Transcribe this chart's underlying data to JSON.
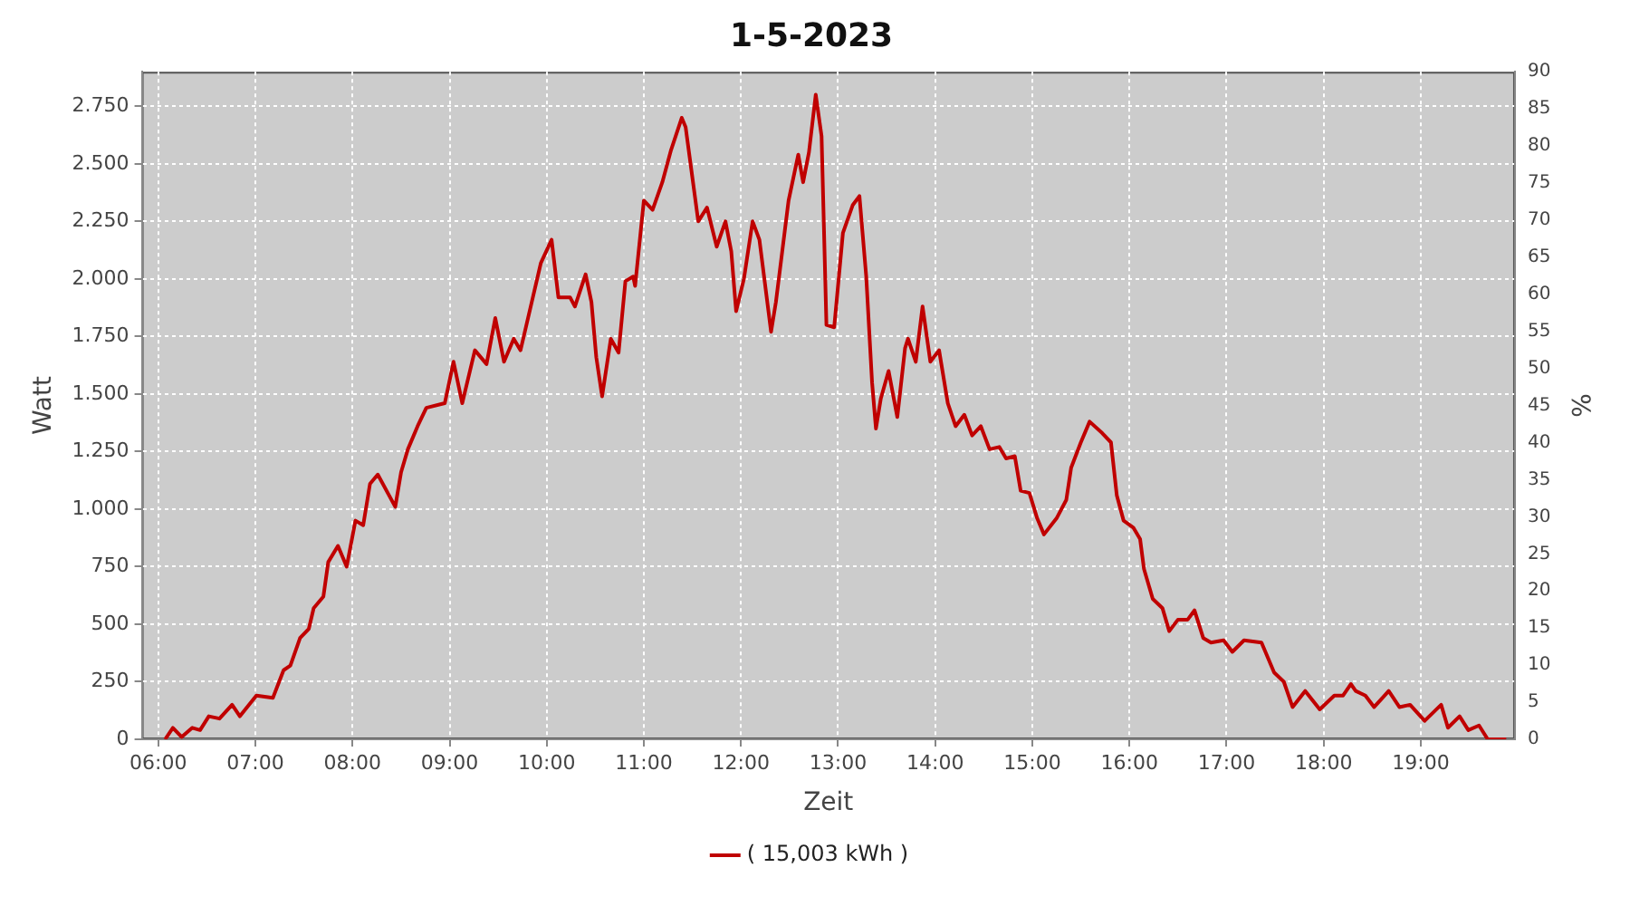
{
  "chart_data": {
    "type": "line",
    "title": "1-5-2023",
    "xlabel": "Zeit",
    "ylabel": "Watt",
    "y2label": "%",
    "xlim": [
      5.83,
      19.97
    ],
    "xticks": [
      {
        "value": 6,
        "label": "06:00"
      },
      {
        "value": 7,
        "label": "07:00"
      },
      {
        "value": 8,
        "label": "08:00"
      },
      {
        "value": 9,
        "label": "09:00"
      },
      {
        "value": 10,
        "label": "10:00"
      },
      {
        "value": 11,
        "label": "11:00"
      },
      {
        "value": 12,
        "label": "12:00"
      },
      {
        "value": 13,
        "label": "13:00"
      },
      {
        "value": 14,
        "label": "14:00"
      },
      {
        "value": 15,
        "label": "15:00"
      },
      {
        "value": 16,
        "label": "16:00"
      },
      {
        "value": 17,
        "label": "17:00"
      },
      {
        "value": 18,
        "label": "18:00"
      },
      {
        "value": 19,
        "label": "19:00"
      }
    ],
    "ylim": [
      0,
      2900
    ],
    "yticks": [
      0,
      250,
      500,
      750,
      {
        "value": 1000,
        "label": "1.000"
      },
      {
        "value": 1250,
        "label": "1.250"
      },
      {
        "value": 1500,
        "label": "1.500"
      },
      {
        "value": 1750,
        "label": "1.750"
      },
      {
        "value": 2000,
        "label": "2.000"
      },
      {
        "value": 2250,
        "label": "2.250"
      },
      {
        "value": 2500,
        "label": "2.500"
      },
      {
        "value": 2750,
        "label": "2.750"
      }
    ],
    "y2lim": [
      0,
      90
    ],
    "y2ticks": [
      0,
      5,
      10,
      15,
      20,
      25,
      30,
      35,
      40,
      45,
      50,
      55,
      60,
      65,
      70,
      75,
      80,
      85,
      90
    ],
    "grid": true,
    "legend": "bottom",
    "series": [
      {
        "name": "( 15,003 kWh )",
        "color": "#c00000",
        "x": [
          6.07,
          6.15,
          6.24,
          6.35,
          6.43,
          6.52,
          6.63,
          6.76,
          6.84,
          7.01,
          7.18,
          7.29,
          7.36,
          7.46,
          7.55,
          7.6,
          7.7,
          7.75,
          7.85,
          7.94,
          8.03,
          8.11,
          8.18,
          8.26,
          8.44,
          8.5,
          8.57,
          8.67,
          8.76,
          8.95,
          9.04,
          9.13,
          9.26,
          9.38,
          9.47,
          9.56,
          9.66,
          9.73,
          9.94,
          10.05,
          10.12,
          10.24,
          10.29,
          10.4,
          10.46,
          10.51,
          10.57,
          10.66,
          10.74,
          10.81,
          10.89,
          10.91,
          11.0,
          11.09,
          11.19,
          11.28,
          11.39,
          11.43,
          11.56,
          11.65,
          11.75,
          11.84,
          11.9,
          11.95,
          12.03,
          12.12,
          12.19,
          12.31,
          12.36,
          12.49,
          12.59,
          12.64,
          12.7,
          12.77,
          12.83,
          12.88,
          12.96,
          13.05,
          13.15,
          13.22,
          13.29,
          13.35,
          13.39,
          13.44,
          13.52,
          13.61,
          13.69,
          13.72,
          13.8,
          13.87,
          13.95,
          14.04,
          14.13,
          14.21,
          14.3,
          14.38,
          14.47,
          14.56,
          14.66,
          14.73,
          14.82,
          14.88,
          14.97,
          15.05,
          15.12,
          15.25,
          15.35,
          15.4,
          15.5,
          15.59,
          15.72,
          15.81,
          15.87,
          15.94,
          16.04,
          16.11,
          16.15,
          16.24,
          16.34,
          16.41,
          16.5,
          16.6,
          16.67,
          16.76,
          16.84,
          16.97,
          17.06,
          17.18,
          17.36,
          17.49,
          17.59,
          17.68,
          17.81,
          17.96,
          18.11,
          18.2,
          18.28,
          18.33,
          18.43,
          18.52,
          18.67,
          18.78,
          18.89,
          19.04,
          19.21,
          19.28,
          19.4,
          19.49,
          19.6,
          19.69,
          19.88
        ],
        "values": [
          0,
          50,
          10,
          50,
          40,
          100,
          90,
          150,
          100,
          190,
          180,
          300,
          320,
          440,
          480,
          570,
          620,
          770,
          840,
          750,
          950,
          930,
          1110,
          1150,
          1010,
          1160,
          1260,
          1360,
          1440,
          1460,
          1640,
          1460,
          1690,
          1630,
          1830,
          1640,
          1740,
          1690,
          2070,
          2170,
          1920,
          1920,
          1880,
          2020,
          1900,
          1660,
          1490,
          1740,
          1680,
          1990,
          2010,
          1970,
          2340,
          2300,
          2420,
          2560,
          2700,
          2660,
          2250,
          2310,
          2140,
          2250,
          2120,
          1860,
          2000,
          2250,
          2170,
          1770,
          1900,
          2340,
          2540,
          2420,
          2550,
          2800,
          2620,
          1800,
          1790,
          2200,
          2320,
          2360,
          2010,
          1550,
          1350,
          1480,
          1600,
          1400,
          1700,
          1740,
          1640,
          1880,
          1640,
          1690,
          1460,
          1360,
          1410,
          1320,
          1360,
          1260,
          1270,
          1220,
          1230,
          1080,
          1070,
          960,
          890,
          960,
          1040,
          1180,
          1290,
          1380,
          1330,
          1290,
          1060,
          950,
          920,
          870,
          740,
          610,
          570,
          470,
          520,
          520,
          560,
          440,
          420,
          430,
          380,
          430,
          420,
          290,
          250,
          140,
          210,
          130,
          190,
          190,
          240,
          210,
          190,
          140,
          210,
          140,
          150,
          80,
          150,
          50,
          100,
          40,
          60,
          0,
          0
        ]
      }
    ]
  }
}
